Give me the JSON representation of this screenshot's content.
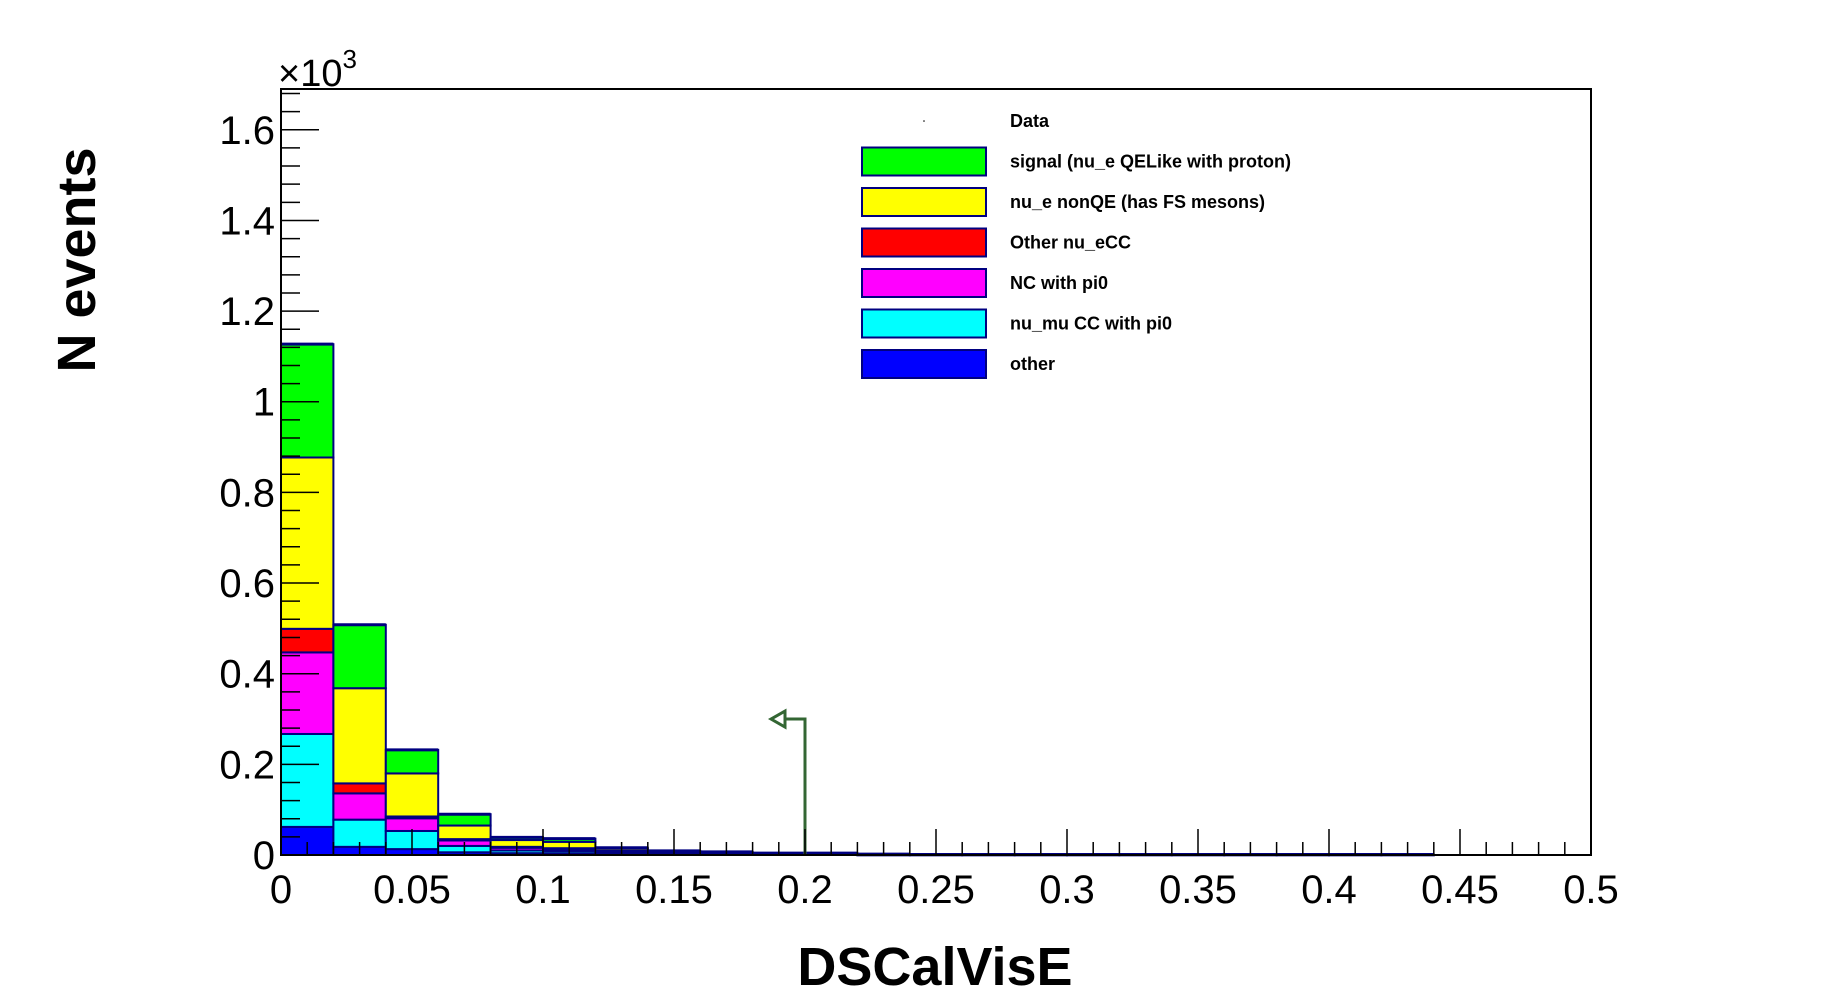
{
  "chart_data": {
    "type": "bar",
    "stacked": true,
    "title": "",
    "xlabel": "DSCalVisE",
    "ylabel": "N events",
    "y_multiplier_label": "×10",
    "y_multiplier_exponent": "3",
    "xlim": [
      0,
      0.5
    ],
    "ylim": [
      0,
      1.69
    ],
    "x_ticks": [
      0,
      0.05,
      0.1,
      0.15,
      0.2,
      0.25,
      0.3,
      0.35,
      0.4,
      0.45,
      0.5
    ],
    "x_tick_labels": [
      "0",
      "0.05",
      "0.1",
      "0.15",
      "0.2",
      "0.25",
      "0.3",
      "0.35",
      "0.4",
      "0.45",
      "0.5"
    ],
    "y_ticks": [
      0,
      0.2,
      0.4,
      0.6,
      0.8,
      1,
      1.2,
      1.4,
      1.6
    ],
    "y_tick_labels": [
      "0",
      "0.2",
      "0.4",
      "0.6",
      "0.8",
      "1",
      "1.2",
      "1.4",
      "1.6"
    ],
    "bin_edges": [
      0,
      0.02,
      0.04,
      0.06,
      0.08,
      0.1,
      0.12,
      0.14,
      0.16,
      0.18,
      0.2,
      0.22,
      0.24,
      0.26,
      0.28,
      0.3,
      0.32,
      0.34,
      0.36,
      0.38,
      0.4,
      0.42,
      0.44,
      0.46,
      0.48,
      0.5
    ],
    "series": [
      {
        "name": "other",
        "color": "#0000ff",
        "values": [
          0.062,
          0.018,
          0.013,
          0.006,
          0.004,
          0.004,
          0.003,
          0.002,
          0.002,
          0.002,
          0.002,
          0.001,
          0.001,
          0.001,
          0.001,
          0.001,
          0.001,
          0.001,
          0.001,
          0.001,
          0.001,
          0.001,
          0,
          0,
          0
        ]
      },
      {
        "name": "nu_mu CC with pi0",
        "color": "#00ffff",
        "values": [
          0.205,
          0.06,
          0.04,
          0.014,
          0.006,
          0.005,
          0.003,
          0.002,
          0.001,
          0.001,
          0.001,
          0.001,
          0,
          0,
          0,
          0,
          0,
          0,
          0,
          0,
          0,
          0,
          0,
          0,
          0
        ]
      },
      {
        "name": "NC with pi0",
        "color": "#ff00ff",
        "values": [
          0.18,
          0.058,
          0.028,
          0.012,
          0.006,
          0.005,
          0.002,
          0.001,
          0.001,
          0,
          0,
          0,
          0,
          0,
          0,
          0,
          0,
          0,
          0,
          0,
          0,
          0,
          0,
          0,
          0
        ]
      },
      {
        "name": "Other nu_eCC",
        "color": "#ff0000",
        "values": [
          0.052,
          0.022,
          0.004,
          0.003,
          0.002,
          0.001,
          0.001,
          0,
          0,
          0,
          0,
          0,
          0,
          0,
          0,
          0,
          0,
          0,
          0,
          0,
          0,
          0,
          0,
          0,
          0
        ]
      },
      {
        "name": "nu_e nonQE (has FS mesons)",
        "color": "#ffff00",
        "values": [
          0.378,
          0.21,
          0.095,
          0.03,
          0.015,
          0.014,
          0.005,
          0.003,
          0.002,
          0.001,
          0.001,
          0,
          0,
          0,
          0,
          0,
          0,
          0,
          0,
          0,
          0,
          0,
          0,
          0,
          0
        ]
      },
      {
        "name": "signal (nu_e QELike with proton)",
        "color": "#00ff00",
        "values": [
          0.25,
          0.14,
          0.052,
          0.025,
          0.006,
          0.007,
          0.002,
          0.001,
          0.001,
          0,
          0,
          0,
          0,
          0,
          0,
          0,
          0,
          0,
          0,
          0,
          0,
          0,
          0,
          0,
          0
        ]
      }
    ],
    "legend": {
      "placement": "top-right",
      "entries": [
        {
          "label": "Data",
          "marker": "point",
          "color": "#000000"
        },
        {
          "label": "signal (nu_e QELike with proton)",
          "marker": "box",
          "color": "#00ff00"
        },
        {
          "label": "nu_e nonQE (has FS mesons)",
          "marker": "box",
          "color": "#ffff00"
        },
        {
          "label": "Other nu_eCC",
          "marker": "box",
          "color": "#ff0000"
        },
        {
          "label": "NC with pi0",
          "marker": "box",
          "color": "#ff00ff"
        },
        {
          "label": "nu_mu CC with pi0",
          "marker": "box",
          "color": "#00ffff"
        },
        {
          "label": "other",
          "marker": "box",
          "color": "#0000ff"
        }
      ]
    },
    "cut_marker": {
      "x": 0.2,
      "y": 0.3,
      "direction": "left",
      "color": "#336633"
    },
    "grid": false,
    "outline_color": "#000080"
  }
}
